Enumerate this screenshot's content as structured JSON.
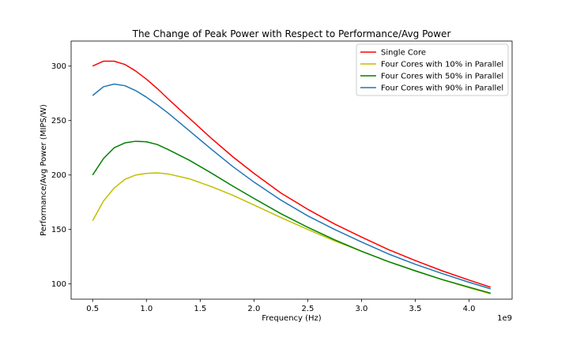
{
  "chart_data": {
    "type": "line",
    "title": "The Change of Peak Power with Respect to Performance/Avg Power",
    "xlabel": "Frequency (Hz)",
    "ylabel": "Performance/Avg Power (MIPS/W)",
    "x_offset_label": "1e9",
    "xlim": [
      0.3,
      4.4
    ],
    "ylim": [
      86,
      323
    ],
    "x_ticks": [
      0.5,
      1.0,
      1.5,
      2.0,
      2.5,
      3.0,
      3.5,
      4.0
    ],
    "x_tick_labels": [
      "0.5",
      "1.0",
      "1.5",
      "2.0",
      "2.5",
      "3.0",
      "3.5",
      "4.0"
    ],
    "y_ticks": [
      100,
      150,
      200,
      250,
      300
    ],
    "y_tick_labels": [
      "100",
      "150",
      "200",
      "250",
      "300"
    ],
    "grid": false,
    "legend_position": "top-right",
    "x": [
      0.5,
      0.6,
      0.7,
      0.8,
      0.9,
      1.0,
      1.1,
      1.2,
      1.4,
      1.6,
      1.8,
      2.0,
      2.25,
      2.5,
      2.75,
      3.0,
      3.25,
      3.5,
      3.75,
      4.0,
      4.2
    ],
    "series": [
      {
        "name": "Single Core",
        "color": "#ff0000",
        "values": [
          300,
          304.5,
          304.5,
          301.5,
          295.5,
          288,
          279.5,
          270,
          252,
          234,
          217,
          201.5,
          183.5,
          168.5,
          155,
          143,
          131.5,
          121.5,
          112,
          103.5,
          97
        ]
      },
      {
        "name": "Four Cores with 10% in Parallel",
        "color": "#bfbf00",
        "values": [
          158,
          176,
          188,
          196,
          200,
          201.5,
          202,
          201,
          196.5,
          189.5,
          181.5,
          172.5,
          161,
          150,
          139.5,
          130,
          120.5,
          112,
          104,
          96.5,
          91
        ]
      },
      {
        "name": "Four Cores with 50% in Parallel",
        "color": "#008000",
        "values": [
          200,
          215,
          225,
          229.5,
          231,
          230.5,
          228,
          223.5,
          213.5,
          202,
          190,
          178.5,
          164.5,
          152,
          140.5,
          130,
          120.5,
          112,
          104,
          97,
          91.5
        ]
      },
      {
        "name": "Four Cores with 90% in Parallel",
        "color": "#1f77b4",
        "values": [
          273,
          281,
          283.5,
          282,
          277.5,
          271.5,
          264.5,
          257,
          240.5,
          224,
          208,
          193.5,
          177,
          162.5,
          150,
          138.5,
          127.5,
          118,
          109.5,
          101.5,
          95.5
        ]
      }
    ]
  }
}
